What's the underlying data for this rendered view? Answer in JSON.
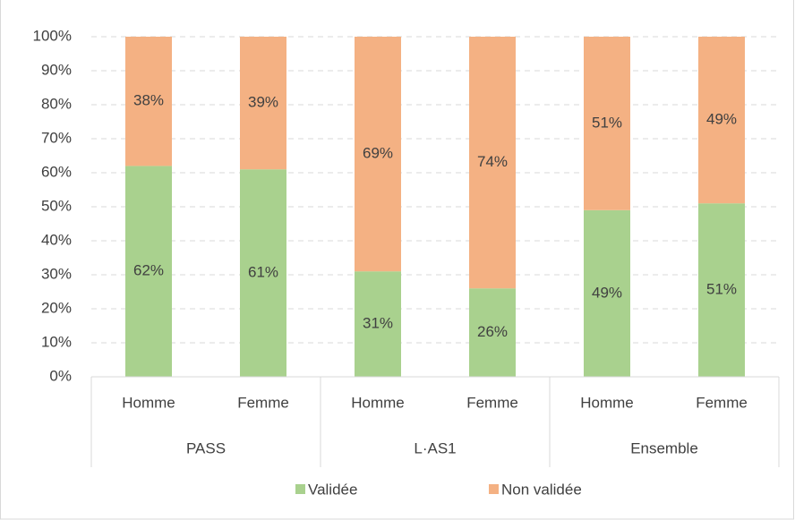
{
  "chart_data": {
    "type": "stacked_bar",
    "categories": [
      "Homme",
      "Femme",
      "Homme",
      "Femme",
      "Homme",
      "Femme"
    ],
    "groups": [
      "PASS",
      "L·AS1",
      "Ensemble"
    ],
    "series": [
      {
        "name": "Validée",
        "color": "#a9d18e",
        "values": [
          62,
          61,
          31,
          26,
          49,
          51
        ],
        "value_labels": [
          "62%",
          "61%",
          "31%",
          "26%",
          "49%",
          "51%"
        ]
      },
      {
        "name": "Non validée",
        "color": "#f4b183",
        "values": [
          38,
          39,
          69,
          74,
          51,
          49
        ],
        "value_labels": [
          "38%",
          "39%",
          "69%",
          "74%",
          "51%",
          "49%"
        ]
      }
    ],
    "ylim": [
      0,
      100
    ],
    "yticks": [
      {
        "value": 0,
        "label": "0%"
      },
      {
        "value": 10,
        "label": "10%"
      },
      {
        "value": 20,
        "label": "20%"
      },
      {
        "value": 30,
        "label": "30%"
      },
      {
        "value": 40,
        "label": "40%"
      },
      {
        "value": 50,
        "label": "50%"
      },
      {
        "value": 60,
        "label": "60%"
      },
      {
        "value": 70,
        "label": "70%"
      },
      {
        "value": 80,
        "label": "80%"
      },
      {
        "value": 90,
        "label": "90%"
      },
      {
        "value": 100,
        "label": "100%"
      }
    ],
    "grid": true,
    "legend": "bottom"
  }
}
